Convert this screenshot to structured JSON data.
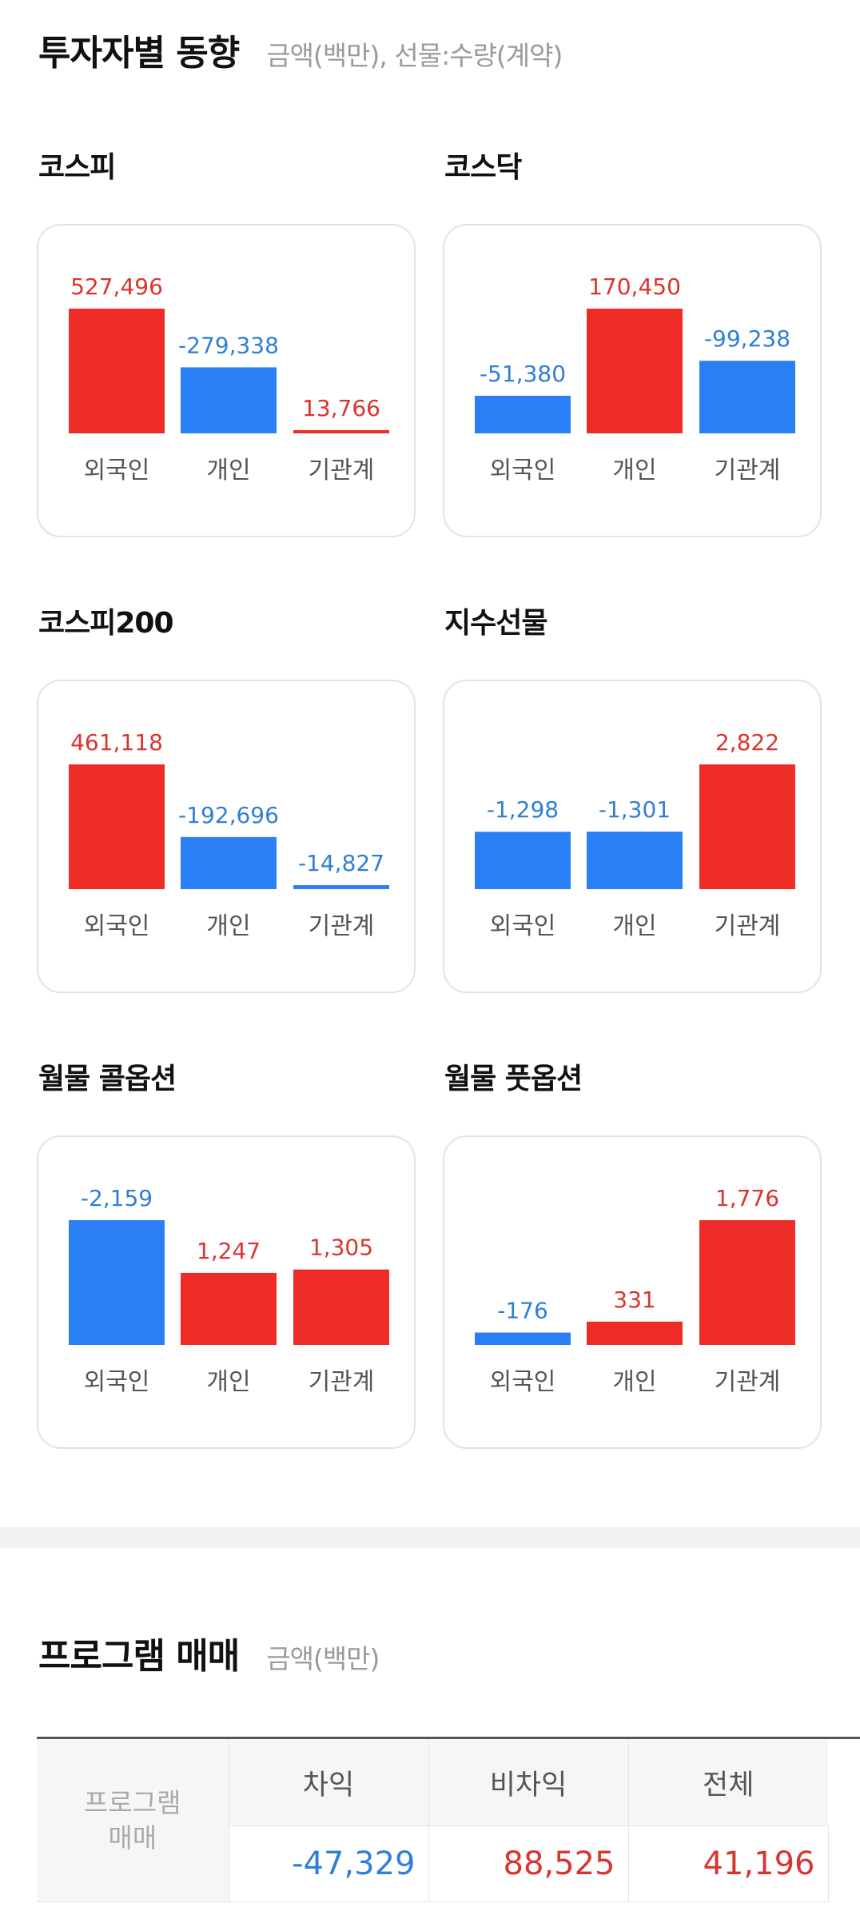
{
  "investor": {
    "title": "투자자별 동향",
    "unit": "금액(백만), 선물:수량(계약)"
  },
  "colors": {
    "positive": "#ee2b27",
    "negative": "#2b7ff5",
    "positive_text": "#d93530",
    "negative_text": "#2f7fd6"
  },
  "chart_data": [
    {
      "type": "bar",
      "title": "코스피",
      "categories": [
        "외국인",
        "개인",
        "기관계"
      ],
      "values": [
        527496,
        -279338,
        13766
      ],
      "labels": [
        "527,496",
        "-279,338",
        "13,766"
      ]
    },
    {
      "type": "bar",
      "title": "코스닥",
      "categories": [
        "외국인",
        "개인",
        "기관계"
      ],
      "values": [
        -51380,
        170450,
        -99238
      ],
      "labels": [
        "-51,380",
        "170,450",
        "-99,238"
      ]
    },
    {
      "type": "bar",
      "title": "코스피200",
      "categories": [
        "외국인",
        "개인",
        "기관계"
      ],
      "values": [
        461118,
        -192696,
        -14827
      ],
      "labels": [
        "461,118",
        "-192,696",
        "-14,827"
      ]
    },
    {
      "type": "bar",
      "title": "지수선물",
      "categories": [
        "외국인",
        "개인",
        "기관계"
      ],
      "values": [
        -1298,
        -1301,
        2822
      ],
      "labels": [
        "-1,298",
        "-1,301",
        "2,822"
      ]
    },
    {
      "type": "bar",
      "title": "월물 콜옵션",
      "categories": [
        "외국인",
        "개인",
        "기관계"
      ],
      "values": [
        -2159,
        1247,
        1305
      ],
      "labels": [
        "-2,159",
        "1,247",
        "1,305"
      ]
    },
    {
      "type": "bar",
      "title": "월물 풋옵션",
      "categories": [
        "외국인",
        "개인",
        "기관계"
      ],
      "values": [
        -176,
        331,
        1776
      ],
      "labels": [
        "-176",
        "331",
        "1,776"
      ]
    }
  ],
  "program": {
    "title": "프로그램 매매",
    "unit": "금액(백만)",
    "row_header_line1": "프로그램",
    "row_header_line2": "매매",
    "columns": [
      "차익",
      "비차익",
      "전체"
    ],
    "values": [
      "-47,329",
      "88,525",
      "41,196"
    ]
  }
}
